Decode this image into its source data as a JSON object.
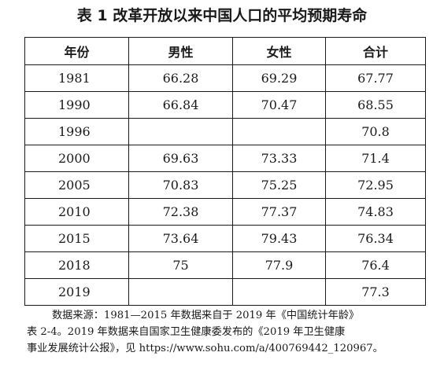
{
  "title": "表 1  改革开放以来中国人口的平均预期寿命",
  "table": {
    "headers": [
      "年份",
      "男性",
      "女性",
      "合计"
    ],
    "rows": [
      {
        "year": "1981",
        "male": "66.28",
        "female": "69.29",
        "total": "67.77"
      },
      {
        "year": "1990",
        "male": "66.84",
        "female": "70.47",
        "total": "68.55"
      },
      {
        "year": "1996",
        "male": "",
        "female": "",
        "total": "70.8"
      },
      {
        "year": "2000",
        "male": "69.63",
        "female": "73.33",
        "total": "71.4"
      },
      {
        "year": "2005",
        "male": "70.83",
        "female": "75.25",
        "total": "72.95"
      },
      {
        "year": "2010",
        "male": "72.38",
        "female": "77.37",
        "total": "74.83"
      },
      {
        "year": "2015",
        "male": "73.64",
        "female": "79.43",
        "total": "76.34"
      },
      {
        "year": "2018",
        "male": "75",
        "female": "77.9",
        "total": "76.4"
      },
      {
        "year": "2019",
        "male": "",
        "female": "",
        "total": "77.3"
      }
    ]
  },
  "source": {
    "line1": "数据来源：1981—2015 年数据来自于 2019 年《中国统计年龄》",
    "line2": "表 2-4。2019 年数据来自国家卫生健康委发布的《2019 年卫生健康",
    "line3": "事业发展统计公报》，见 https://www.sohu.com/a/400769442_120967。"
  }
}
